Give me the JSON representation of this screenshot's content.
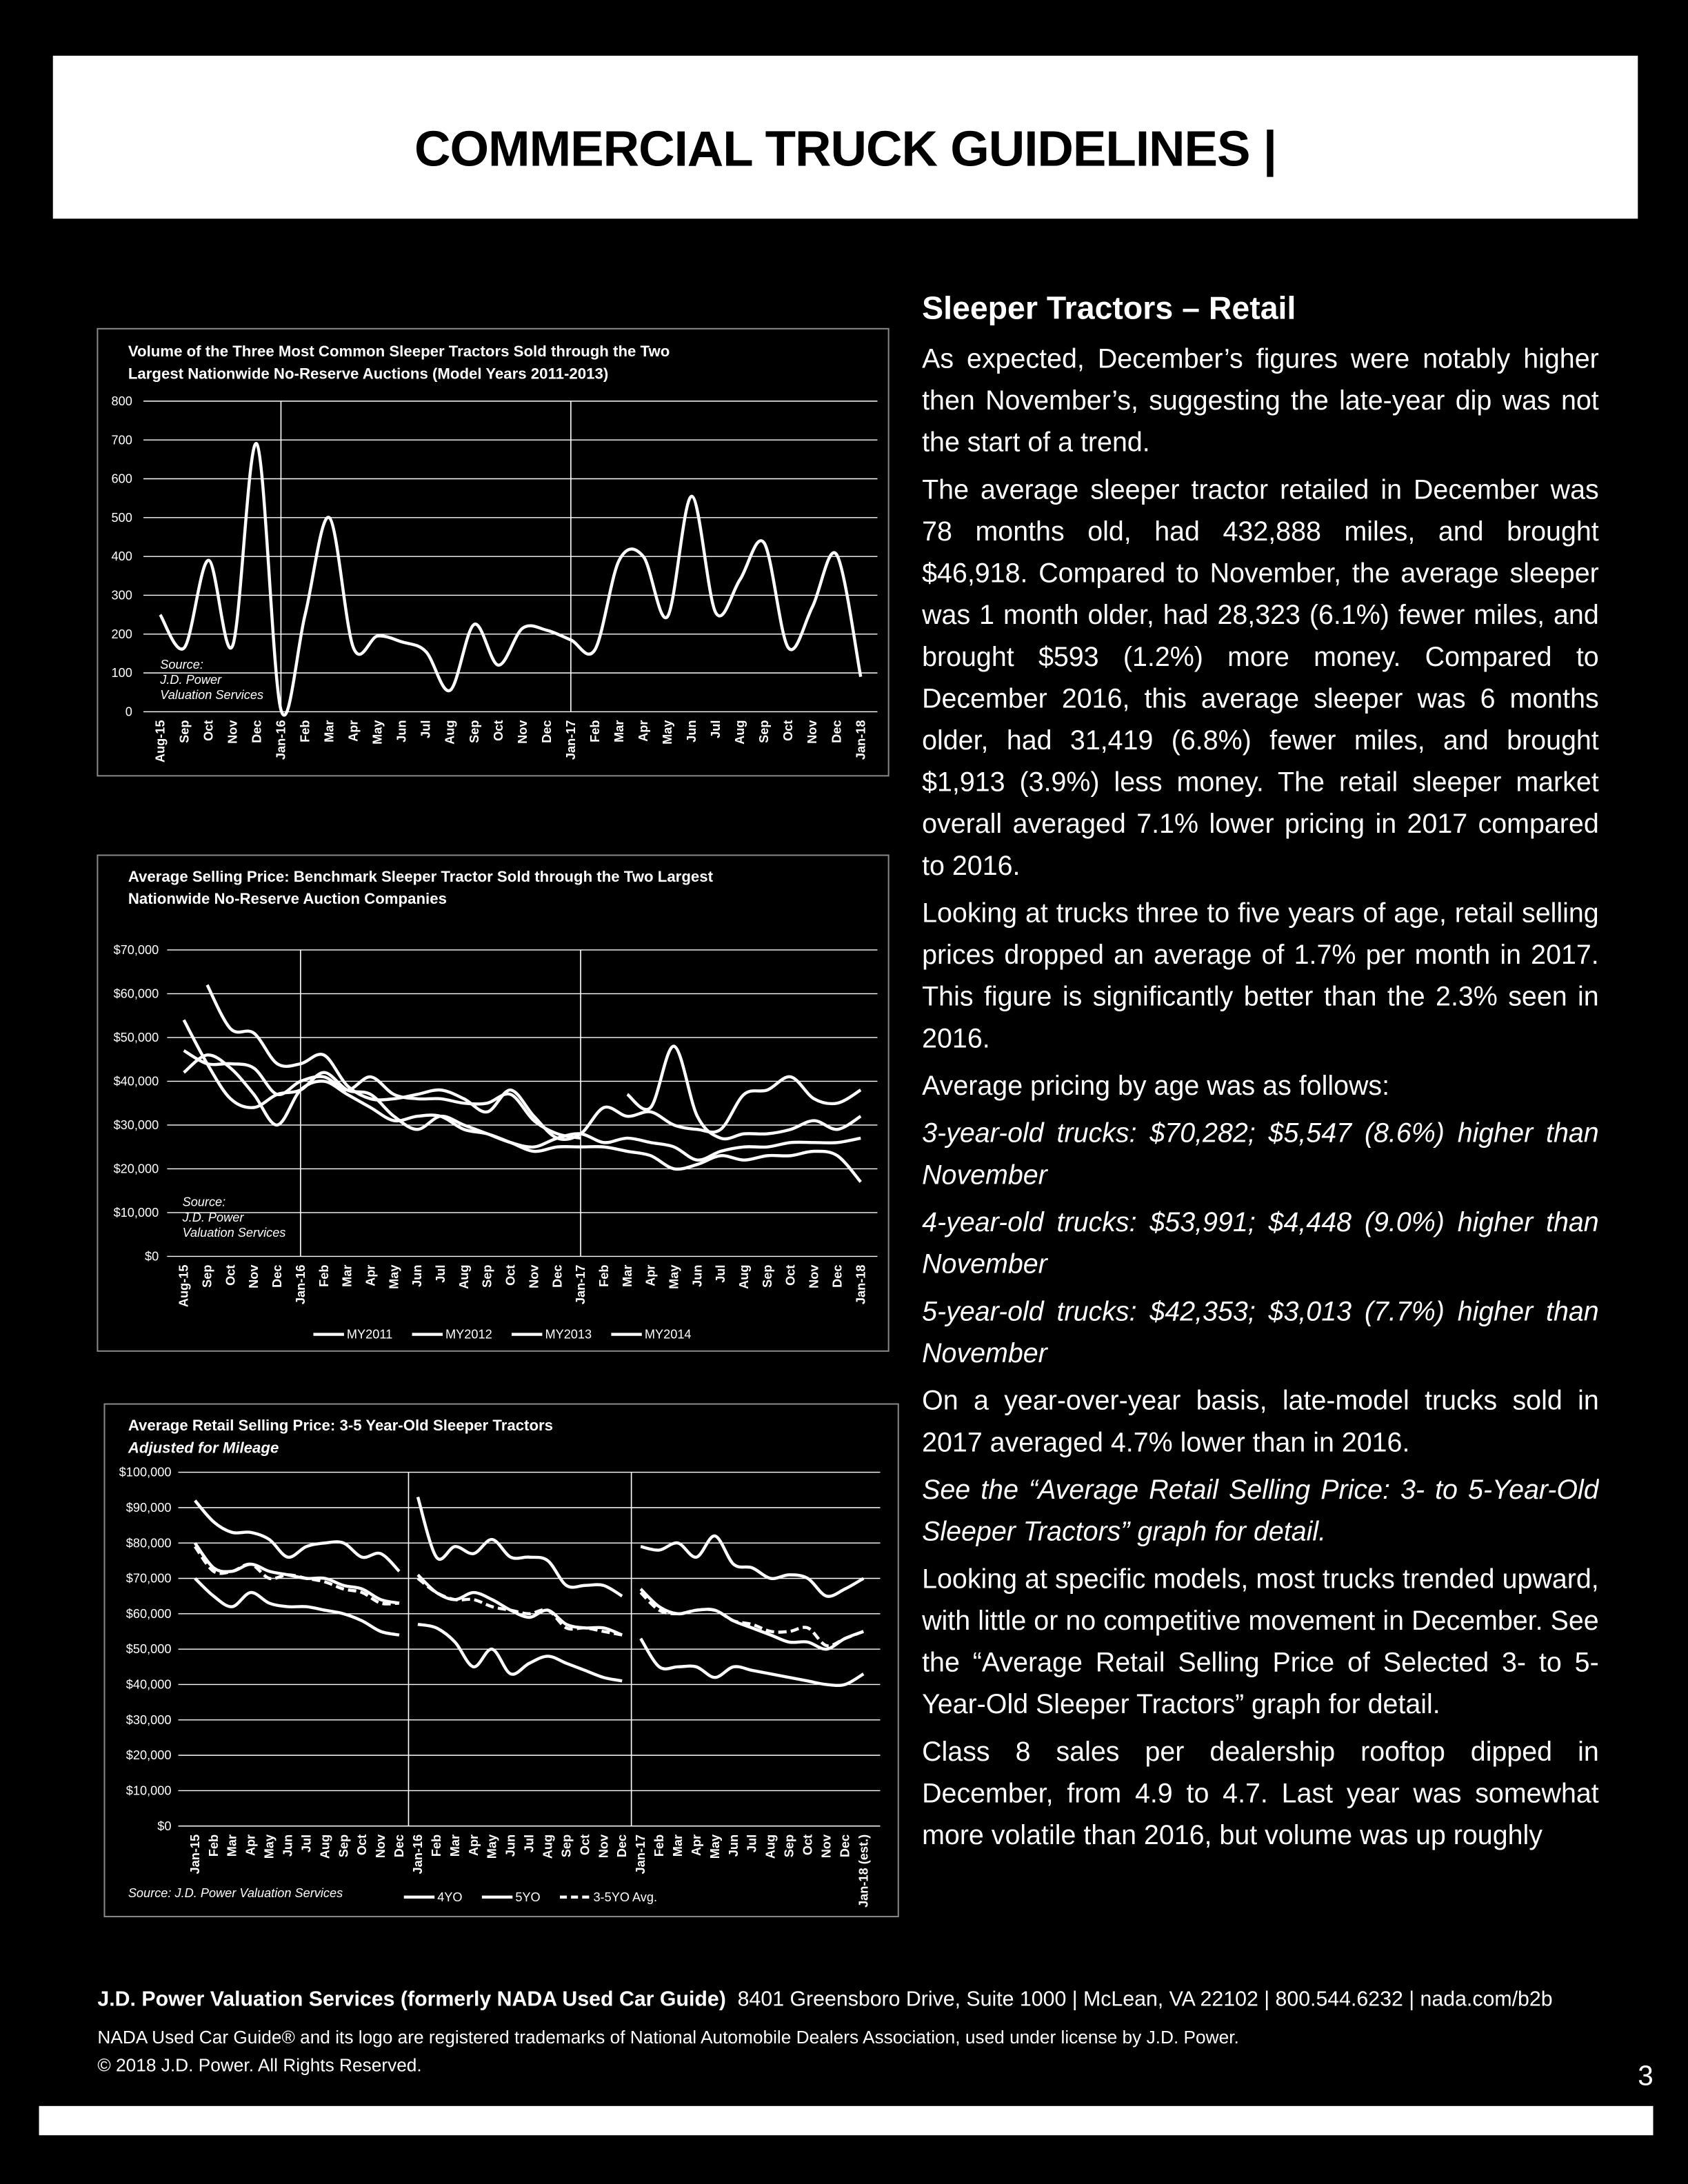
{
  "header": {
    "title": "COMMERCIAL TRUCK GUIDELINES |"
  },
  "chart_data": [
    {
      "type": "line",
      "title": "Volume of the Three Most Common Sleeper Tractors Sold through the Two Largest Nationwide No-Reserve Auctions (Model Years 2011-2013)",
      "source_note": [
        "Source:",
        "J.D. Power",
        "Valuation Services"
      ],
      "categories": [
        "Aug-15",
        "Sep",
        "Oct",
        "Nov",
        "Dec",
        "Jan-16",
        "Feb",
        "Mar",
        "Apr",
        "May",
        "Jun",
        "Jul",
        "Aug",
        "Sep",
        "Oct",
        "Nov",
        "Dec",
        "Jan-17",
        "Feb",
        "Mar",
        "Apr",
        "May",
        "Jun",
        "Jul",
        "Aug",
        "Sep",
        "Oct",
        "Nov",
        "Dec",
        "Jan-18"
      ],
      "series": [
        {
          "color": "#ffffff",
          "values": [
            250,
            165,
            390,
            170,
            690,
            5,
            250,
            500,
            165,
            195,
            180,
            155,
            55,
            225,
            120,
            215,
            210,
            185,
            160,
            390,
            400,
            245,
            555,
            255,
            340,
            435,
            165,
            270,
            405,
            90
          ]
        }
      ],
      "ylim": [
        0,
        800
      ],
      "yticks": [
        0,
        100,
        200,
        300,
        400,
        500,
        600,
        700,
        800
      ],
      "grid": true
    },
    {
      "type": "line",
      "title": "Average Selling Price: Benchmark Sleeper Tractor Sold through the Two Largest Nationwide No-Reserve Auction Companies",
      "source_note": [
        "Source:",
        "J.D. Power",
        "Valuation Services"
      ],
      "categories": [
        "Aug-15",
        "Sep",
        "Oct",
        "Nov",
        "Dec",
        "Jan-16",
        "Feb",
        "Mar",
        "Apr",
        "May",
        "Jun",
        "Jul",
        "Aug",
        "Sep",
        "Oct",
        "Nov",
        "Dec",
        "Jan-17",
        "Feb",
        "Mar",
        "Apr",
        "May",
        "Jun",
        "Jul",
        "Aug",
        "Sep",
        "Oct",
        "Nov",
        "Dec",
        "Jan-18"
      ],
      "series": [
        {
          "name": "MY2011",
          "color": "#ffffff",
          "values": [
            42000,
            46000,
            43000,
            37000,
            30000,
            38000,
            40000,
            37000,
            34000,
            31000,
            32000,
            32000,
            29000,
            28000,
            26000,
            24000,
            25000,
            25000,
            25000,
            24000,
            23000,
            20000,
            21000,
            23000,
            22000,
            23000,
            23000,
            24000,
            23000,
            17000
          ]
        },
        {
          "name": "MY2012",
          "color": "#ffffff",
          "values": [
            54000,
            44000,
            36000,
            34000,
            37000,
            38000,
            42000,
            38000,
            37000,
            32000,
            29000,
            32000,
            30000,
            28000,
            26000,
            25000,
            27000,
            28000,
            26000,
            27000,
            26000,
            25000,
            22000,
            24000,
            25000,
            25000,
            26000,
            26000,
            26000,
            27000
          ]
        },
        {
          "name": "MY2013",
          "color": "#ffffff",
          "values": [
            47000,
            44000,
            44000,
            43000,
            37000,
            40000,
            41000,
            38000,
            41000,
            37000,
            36000,
            36000,
            35000,
            35000,
            37000,
            31000,
            28000,
            27000,
            null,
            37000,
            34000,
            48000,
            32000,
            27000,
            28000,
            28000,
            29000,
            31000,
            29000,
            32000
          ]
        },
        {
          "name": "MY2014",
          "color": "#ffffff",
          "values": [
            null,
            62000,
            52000,
            51000,
            44000,
            44000,
            46000,
            39000,
            36000,
            36000,
            37000,
            38000,
            36000,
            33000,
            38000,
            32000,
            27000,
            28000,
            34000,
            32000,
            33000,
            30000,
            29000,
            29000,
            37000,
            38000,
            41000,
            36000,
            35000,
            38000
          ]
        }
      ],
      "ylim": [
        0,
        70000
      ],
      "yticks": [
        {
          "value": 0,
          "label": "$0"
        },
        {
          "value": 10000,
          "label": "$10,000"
        },
        {
          "value": 20000,
          "label": "$20,000"
        },
        {
          "value": 30000,
          "label": "$30,000"
        },
        {
          "value": 40000,
          "label": "$40,000"
        },
        {
          "value": 50000,
          "label": "$50,000"
        },
        {
          "value": 60000,
          "label": "$60,000"
        },
        {
          "value": 70000,
          "label": "$70,000"
        }
      ],
      "grid": true
    },
    {
      "type": "line",
      "title": "Average Retail Selling Price: 3-5 Year-Old Sleeper Tractors",
      "subtitle": "Adjusted for Mileage",
      "source_note": [
        "Source: J.D. Power Valuation Services"
      ],
      "categories": [
        "Jan-15",
        "Feb",
        "Mar",
        "Apr",
        "May",
        "Jun",
        "Jul",
        "Aug",
        "Sep",
        "Oct",
        "Nov",
        "Dec",
        "Jan-16",
        "Feb",
        "Mar",
        "Apr",
        "May",
        "Jun",
        "Jul",
        "Aug",
        "Sep",
        "Oct",
        "Nov",
        "Dec",
        "Jan-17",
        "Feb",
        "Mar",
        "Apr",
        "May",
        "Jun",
        "Jul",
        "Aug",
        "Sep",
        "Oct",
        "Nov",
        "Dec",
        "Jan-18 (est.)"
      ],
      "series": [
        {
          "color": "#ffffff",
          "values": [
            92000,
            86000,
            83000,
            83000,
            81000,
            76000,
            79000,
            80000,
            80000,
            76000,
            77000,
            72000,
            93000,
            76000,
            79000,
            77000,
            81000,
            76000,
            76000,
            75000,
            68000,
            68000,
            68000,
            65000,
            79000,
            78000,
            80000,
            76000,
            82000,
            74000,
            73000,
            70000,
            71000,
            70000,
            65000,
            67000,
            70000
          ]
        },
        {
          "name": "4YO",
          "color": "#ffffff",
          "values": [
            80000,
            73000,
            72000,
            74000,
            72000,
            71000,
            70000,
            70000,
            68000,
            67000,
            64000,
            63000,
            71000,
            66000,
            64000,
            66000,
            64000,
            61000,
            59000,
            61000,
            57000,
            56000,
            56000,
            54000,
            67000,
            62000,
            60000,
            61000,
            61000,
            58000,
            56000,
            54000,
            52000,
            52000,
            50000,
            53000,
            55000
          ]
        },
        {
          "name": "5YO",
          "color": "#ffffff",
          "values": [
            70000,
            65000,
            62000,
            66000,
            63000,
            62000,
            62000,
            61000,
            60000,
            58000,
            55000,
            54000,
            57000,
            56000,
            52000,
            45000,
            50000,
            43000,
            46000,
            48000,
            46000,
            44000,
            42000,
            41000,
            53000,
            45000,
            45000,
            45000,
            42000,
            45000,
            44000,
            43000,
            42000,
            41000,
            40000,
            40000,
            43000
          ]
        },
        {
          "name": "3-5YO Avg.",
          "color": "#ffffff",
          "line_style": "dashed",
          "values": [
            79000,
            72000,
            72000,
            74000,
            70000,
            71000,
            70000,
            69000,
            67000,
            66000,
            63000,
            63000,
            70000,
            66000,
            64000,
            64000,
            62000,
            61000,
            60000,
            61000,
            56000,
            56000,
            55000,
            54000,
            66000,
            61000,
            60000,
            61000,
            61000,
            58000,
            57000,
            55000,
            55000,
            56000,
            51000,
            53000,
            55000
          ]
        }
      ],
      "ylim": [
        0,
        100000
      ],
      "yticks": [
        {
          "value": 0,
          "label": "$0"
        },
        {
          "value": 10000,
          "label": "$10,000"
        },
        {
          "value": 20000,
          "label": "$20,000"
        },
        {
          "value": 30000,
          "label": "$30,000"
        },
        {
          "value": 40000,
          "label": "$40,000"
        },
        {
          "value": 50000,
          "label": "$50,000"
        },
        {
          "value": 60000,
          "label": "$60,000"
        },
        {
          "value": 70000,
          "label": "$70,000"
        },
        {
          "value": 80000,
          "label": "$80,000"
        },
        {
          "value": 90000,
          "label": "$90,000"
        },
        {
          "value": 100000,
          "label": "$100,000"
        }
      ],
      "grid": true
    }
  ],
  "article": {
    "heading": "Sleeper Tractors – Retail",
    "paragraphs": [
      "As expected, December’s figures were notably higher then November’s, suggesting the late-year dip was not the start of a trend.",
      "The average sleeper tractor retailed in December was 78 months old, had 432,888 miles, and brought $46,918. Compared to November, the average sleeper was 1 month older, had 28,323 (6.1%) fewer miles, and brought $593 (1.2%) more money. Compared to December 2016, this average sleeper was 6 months older, had 31,419 (6.8%) fewer miles, and brought $1,913 (3.9%) less money. The retail sleeper market overall averaged 7.1% lower pricing in 2017 compared to 2016.",
      "Looking at trucks three to five years of age, retail selling prices dropped an average of 1.7% per month in 2017. This figure is significantly better than the 2.3% seen in 2016.",
      "Average pricing by age was as follows:",
      "3-year-old trucks: $70,282; $5,547 (8.6%) higher than November",
      "4-year-old trucks: $53,991; $4,448 (9.0%) higher than November",
      "5-year-old trucks: $42,353; $3,013 (7.7%) higher than November",
      "On a year-over-year basis, late-model trucks sold in 2017 averaged 4.7% lower than in 2016.",
      "See the “Average Retail Selling Price: 3- to 5-Year-Old Sleeper Tractors” graph for detail.",
      "Looking at specific models, most trucks trended upward, with little or no competitive movement in December. See the “Average Retail Selling Price of Selected 3- to 5-Year-Old Sleeper Tractors” graph for detail.",
      "Class 8 sales per dealership rooftop dipped in December, from 4.9 to 4.7. Last year was somewhat more volatile than 2016, but volume was up roughly"
    ]
  },
  "footer": {
    "organization": "J.D. Power Valuation Services (formerly NADA Used Car Guide)",
    "address": "8401 Greensboro Drive, Suite 1000 | McLean, VA 22102 | 800.544.6232 | nada.com/b2b",
    "trademark": "NADA Used Car Guide® and its logo are registered trademarks of National Automobile Dealers Association, used under license by J.D. Power.",
    "copyright": "© 2018 J.D. Power. All Rights Reserved.",
    "page_number": "3"
  }
}
